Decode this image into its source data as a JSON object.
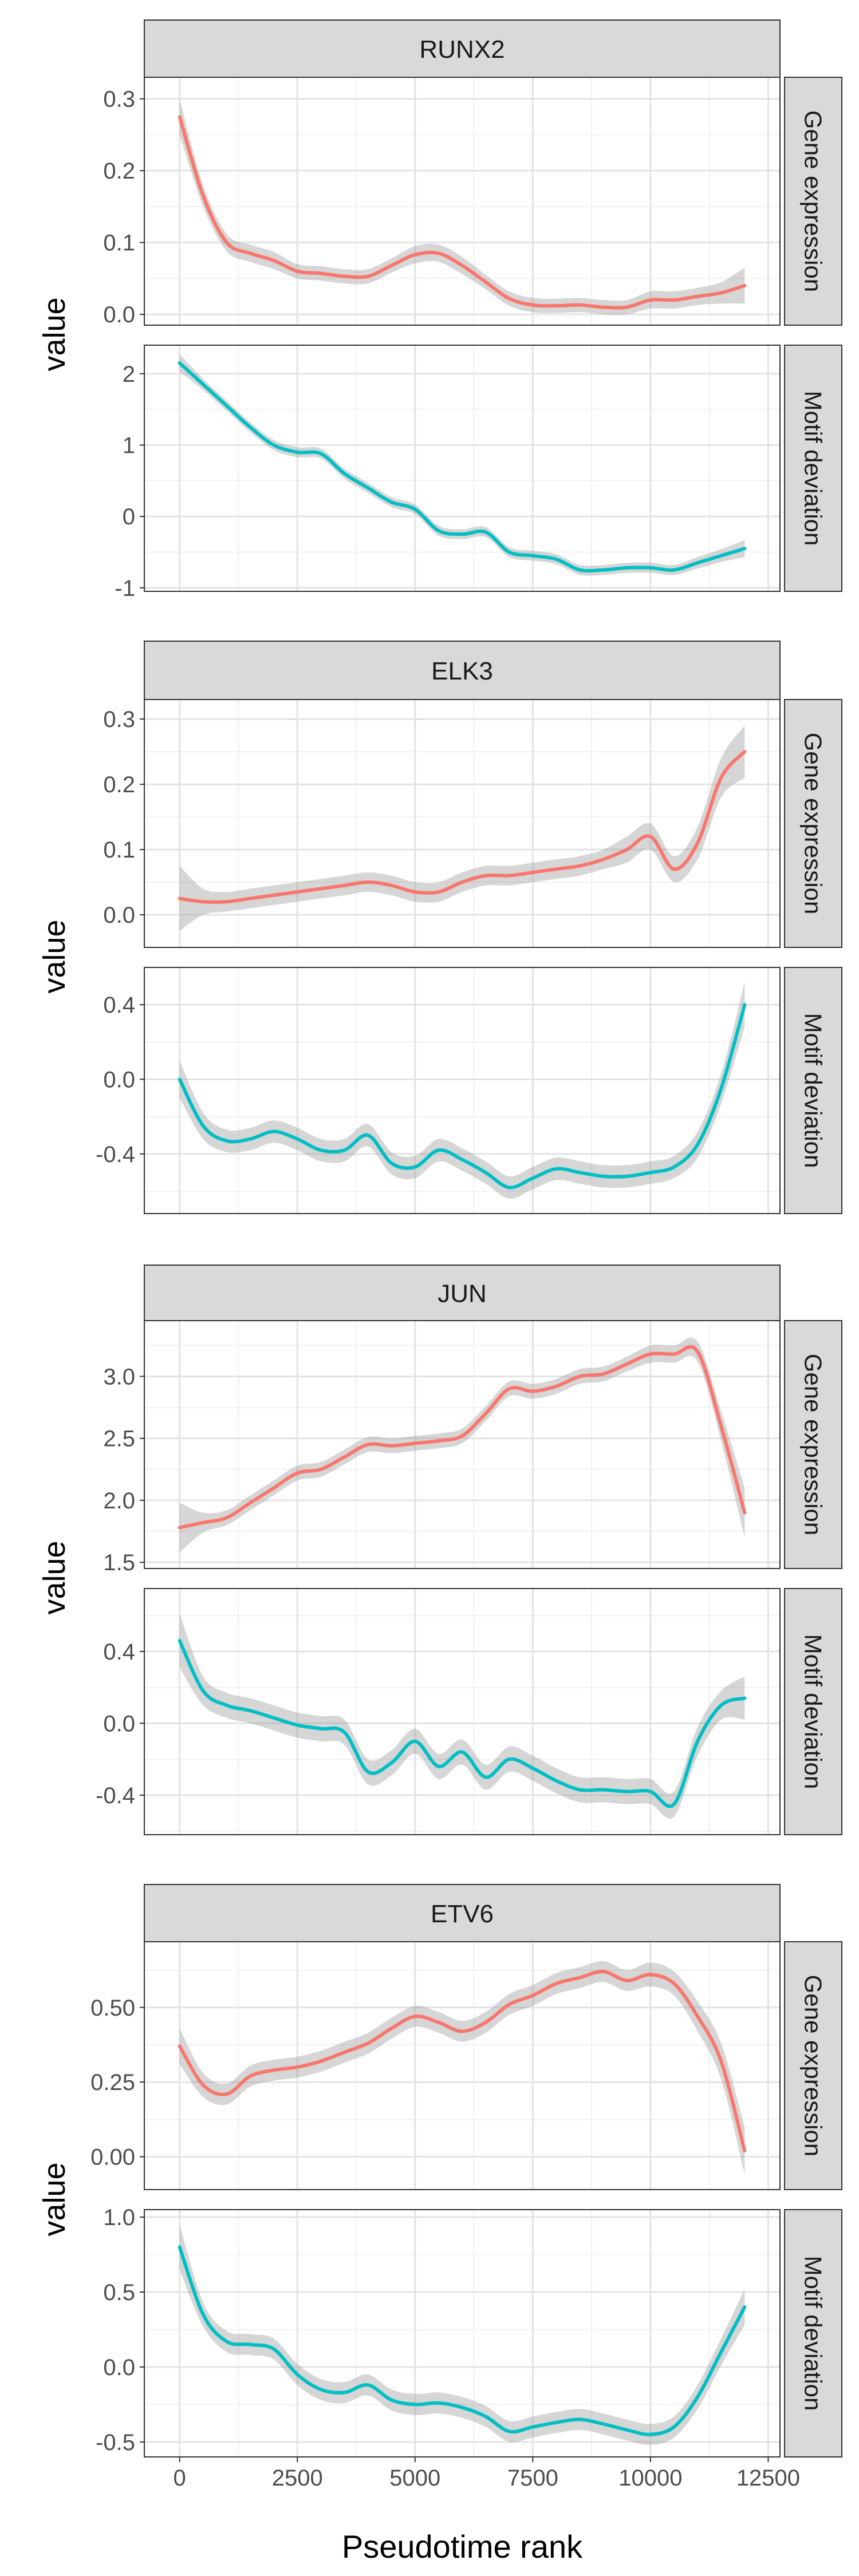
{
  "chart_data": {
    "type": "line",
    "x_axis_label": "Pseudotime rank",
    "x_ticks": [
      0,
      2500,
      5000,
      7500,
      10000,
      12500
    ],
    "x_range": [
      -750,
      12750
    ],
    "y_axis_label": "value",
    "row_strips": [
      "Gene expression",
      "Motif deviation"
    ],
    "series_colors": {
      "Gene expression": "#F8766D",
      "Motif deviation": "#00BFC4"
    },
    "ribbon_color": "#999999",
    "grid": true,
    "legend": "none",
    "genes": [
      {
        "gene": "RUNX2",
        "panels": [
          {
            "strip": "Gene expression",
            "color": "#F8766D",
            "ylim": [
              -0.015,
              0.33
            ],
            "y_ticks": [
              0.0,
              0.1,
              0.2,
              0.3
            ],
            "y_tick_labels": [
              "0.0",
              "0.1",
              "0.2",
              "0.3"
            ],
            "x": [
              0,
              500,
              1000,
              1500,
              2000,
              2500,
              3000,
              3500,
              4000,
              4500,
              5000,
              5500,
              6000,
              6500,
              7000,
              7500,
              8000,
              8500,
              9000,
              9500,
              10000,
              10500,
              11000,
              11500,
              12000
            ],
            "y": [
              0.275,
              0.165,
              0.1,
              0.085,
              0.075,
              0.06,
              0.057,
              0.053,
              0.053,
              0.068,
              0.083,
              0.085,
              0.068,
              0.045,
              0.022,
              0.013,
              0.012,
              0.013,
              0.01,
              0.01,
              0.02,
              0.02,
              0.025,
              0.03,
              0.04
            ],
            "band": [
              0.025,
              0.015,
              0.012,
              0.012,
              0.012,
              0.01,
              0.01,
              0.01,
              0.01,
              0.01,
              0.012,
              0.012,
              0.012,
              0.01,
              0.01,
              0.01,
              0.01,
              0.01,
              0.01,
              0.01,
              0.012,
              0.012,
              0.012,
              0.015,
              0.025
            ]
          },
          {
            "strip": "Motif deviation",
            "color": "#00BFC4",
            "ylim": [
              -1.05,
              2.4
            ],
            "y_ticks": [
              -1,
              0,
              1,
              2
            ],
            "y_tick_labels": [
              "-1",
              "0",
              "1",
              "2"
            ],
            "x": [
              0,
              500,
              1000,
              1500,
              2000,
              2500,
              3000,
              3500,
              4000,
              4500,
              5000,
              5500,
              6000,
              6500,
              7000,
              7500,
              8000,
              8500,
              9000,
              9500,
              10000,
              10500,
              11000,
              11500,
              12000
            ],
            "y": [
              2.15,
              1.85,
              1.55,
              1.25,
              1.0,
              0.9,
              0.88,
              0.6,
              0.4,
              0.2,
              0.1,
              -0.2,
              -0.25,
              -0.22,
              -0.5,
              -0.55,
              -0.6,
              -0.75,
              -0.75,
              -0.72,
              -0.72,
              -0.75,
              -0.65,
              -0.55,
              -0.45
            ],
            "band": [
              0.12,
              0.08,
              0.07,
              0.07,
              0.07,
              0.07,
              0.07,
              0.07,
              0.07,
              0.07,
              0.07,
              0.07,
              0.07,
              0.07,
              0.07,
              0.07,
              0.07,
              0.07,
              0.07,
              0.07,
              0.07,
              0.07,
              0.08,
              0.09,
              0.12
            ]
          }
        ]
      },
      {
        "gene": "ELK3",
        "panels": [
          {
            "strip": "Gene expression",
            "color": "#F8766D",
            "ylim": [
              -0.05,
              0.33
            ],
            "y_ticks": [
              0.0,
              0.1,
              0.2,
              0.3
            ],
            "y_tick_labels": [
              "0.0",
              "0.1",
              "0.2",
              "0.3"
            ],
            "x": [
              0,
              500,
              1000,
              1500,
              2000,
              2500,
              3000,
              3500,
              4000,
              4500,
              5000,
              5500,
              6000,
              6500,
              7000,
              7500,
              8000,
              8500,
              9000,
              9500,
              10000,
              10500,
              11000,
              11500,
              12000
            ],
            "y": [
              0.025,
              0.02,
              0.02,
              0.025,
              0.03,
              0.035,
              0.04,
              0.045,
              0.05,
              0.045,
              0.035,
              0.035,
              0.05,
              0.06,
              0.06,
              0.065,
              0.07,
              0.075,
              0.085,
              0.1,
              0.12,
              0.07,
              0.11,
              0.21,
              0.25
            ],
            "band": [
              0.05,
              0.02,
              0.015,
              0.015,
              0.015,
              0.015,
              0.015,
              0.015,
              0.015,
              0.015,
              0.015,
              0.015,
              0.015,
              0.015,
              0.015,
              0.015,
              0.015,
              0.015,
              0.015,
              0.02,
              0.02,
              0.02,
              0.025,
              0.03,
              0.04
            ]
          },
          {
            "strip": "Motif deviation",
            "color": "#00BFC4",
            "ylim": [
              -0.72,
              0.6
            ],
            "y_ticks": [
              -0.4,
              0.0,
              0.4
            ],
            "y_tick_labels": [
              "-0.4",
              "0.0",
              "0.4"
            ],
            "x": [
              0,
              500,
              1000,
              1500,
              2000,
              2500,
              3000,
              3500,
              4000,
              4500,
              5000,
              5500,
              6000,
              6500,
              7000,
              7500,
              8000,
              8500,
              9000,
              9500,
              10000,
              10500,
              11000,
              11500,
              12000
            ],
            "y": [
              0.0,
              -0.25,
              -0.33,
              -0.32,
              -0.28,
              -0.32,
              -0.38,
              -0.38,
              -0.3,
              -0.45,
              -0.47,
              -0.38,
              -0.43,
              -0.5,
              -0.58,
              -0.53,
              -0.48,
              -0.5,
              -0.52,
              -0.52,
              -0.5,
              -0.47,
              -0.35,
              -0.05,
              0.4
            ],
            "band": [
              0.1,
              0.07,
              0.06,
              0.06,
              0.06,
              0.06,
              0.06,
              0.06,
              0.06,
              0.06,
              0.06,
              0.06,
              0.06,
              0.06,
              0.06,
              0.06,
              0.06,
              0.06,
              0.06,
              0.06,
              0.06,
              0.06,
              0.07,
              0.08,
              0.12
            ]
          }
        ]
      },
      {
        "gene": "JUN",
        "panels": [
          {
            "strip": "Gene expression",
            "color": "#F8766D",
            "ylim": [
              1.45,
              3.45
            ],
            "y_ticks": [
              1.5,
              2.0,
              2.5,
              3.0
            ],
            "y_tick_labels": [
              "1.5",
              "2.0",
              "2.5",
              "3.0"
            ],
            "x": [
              0,
              500,
              1000,
              1500,
              2000,
              2500,
              3000,
              3500,
              4000,
              4500,
              5000,
              5500,
              6000,
              6500,
              7000,
              7500,
              8000,
              8500,
              9000,
              9500,
              10000,
              10500,
              11000,
              11500,
              12000
            ],
            "y": [
              1.78,
              1.82,
              1.86,
              1.98,
              2.1,
              2.22,
              2.25,
              2.35,
              2.45,
              2.44,
              2.46,
              2.48,
              2.52,
              2.7,
              2.9,
              2.88,
              2.92,
              3.0,
              3.02,
              3.1,
              3.18,
              3.18,
              3.2,
              2.6,
              1.9
            ],
            "band": [
              0.2,
              0.08,
              0.06,
              0.06,
              0.06,
              0.06,
              0.06,
              0.06,
              0.06,
              0.06,
              0.06,
              0.06,
              0.06,
              0.06,
              0.06,
              0.06,
              0.06,
              0.06,
              0.06,
              0.06,
              0.07,
              0.07,
              0.08,
              0.12,
              0.2
            ]
          },
          {
            "strip": "Motif deviation",
            "color": "#00BFC4",
            "ylim": [
              -0.62,
              0.75
            ],
            "y_ticks": [
              -0.4,
              0.0,
              0.4
            ],
            "y_tick_labels": [
              "-0.4",
              "0.0",
              "0.4"
            ],
            "x": [
              0,
              500,
              1000,
              1500,
              2000,
              2500,
              3000,
              3500,
              4000,
              4500,
              5000,
              5500,
              6000,
              6500,
              7000,
              7500,
              8000,
              8500,
              9000,
              9500,
              10000,
              10500,
              11000,
              11500,
              12000
            ],
            "y": [
              0.46,
              0.18,
              0.1,
              0.07,
              0.03,
              -0.01,
              -0.03,
              -0.05,
              -0.27,
              -0.22,
              -0.1,
              -0.24,
              -0.16,
              -0.3,
              -0.2,
              -0.25,
              -0.32,
              -0.37,
              -0.37,
              -0.38,
              -0.38,
              -0.45,
              -0.1,
              0.1,
              0.14
            ],
            "band": [
              0.15,
              0.08,
              0.07,
              0.07,
              0.07,
              0.07,
              0.07,
              0.07,
              0.07,
              0.07,
              0.07,
              0.07,
              0.07,
              0.07,
              0.07,
              0.07,
              0.07,
              0.07,
              0.07,
              0.07,
              0.07,
              0.07,
              0.08,
              0.08,
              0.12
            ]
          }
        ]
      },
      {
        "gene": "ETV6",
        "panels": [
          {
            "strip": "Gene expression",
            "color": "#F8766D",
            "ylim": [
              -0.11,
              0.72
            ],
            "y_ticks": [
              0.0,
              0.25,
              0.5
            ],
            "y_tick_labels": [
              "0.00",
              "0.25",
              "0.50"
            ],
            "x": [
              0,
              500,
              1000,
              1500,
              2000,
              2500,
              3000,
              3500,
              4000,
              4500,
              5000,
              5500,
              6000,
              6500,
              7000,
              7500,
              8000,
              8500,
              9000,
              9500,
              10000,
              10500,
              11000,
              11500,
              12000
            ],
            "y": [
              0.37,
              0.24,
              0.21,
              0.27,
              0.29,
              0.3,
              0.32,
              0.35,
              0.38,
              0.43,
              0.47,
              0.45,
              0.42,
              0.45,
              0.51,
              0.54,
              0.58,
              0.6,
              0.62,
              0.59,
              0.61,
              0.58,
              0.47,
              0.32,
              0.02
            ],
            "band": [
              0.06,
              0.04,
              0.035,
              0.035,
              0.035,
              0.035,
              0.035,
              0.035,
              0.035,
              0.035,
              0.035,
              0.035,
              0.035,
              0.035,
              0.035,
              0.035,
              0.035,
              0.035,
              0.035,
              0.035,
              0.04,
              0.04,
              0.05,
              0.06,
              0.08
            ]
          },
          {
            "strip": "Motif deviation",
            "color": "#00BFC4",
            "ylim": [
              -0.6,
              1.05
            ],
            "y_ticks": [
              -0.5,
              0.0,
              0.5,
              1.0
            ],
            "y_tick_labels": [
              "-0.5",
              "0.0",
              "0.5",
              "1.0"
            ],
            "x": [
              0,
              500,
              1000,
              1500,
              2000,
              2500,
              3000,
              3500,
              4000,
              4500,
              5000,
              5500,
              6000,
              6500,
              7000,
              7500,
              8000,
              8500,
              9000,
              9500,
              10000,
              10500,
              11000,
              11500,
              12000
            ],
            "y": [
              0.8,
              0.35,
              0.17,
              0.15,
              0.12,
              -0.05,
              -0.15,
              -0.17,
              -0.12,
              -0.22,
              -0.25,
              -0.24,
              -0.27,
              -0.33,
              -0.43,
              -0.4,
              -0.37,
              -0.35,
              -0.38,
              -0.42,
              -0.45,
              -0.4,
              -0.2,
              0.1,
              0.4
            ],
            "band": [
              0.15,
              0.08,
              0.07,
              0.07,
              0.07,
              0.07,
              0.07,
              0.07,
              0.07,
              0.07,
              0.07,
              0.07,
              0.07,
              0.07,
              0.07,
              0.07,
              0.07,
              0.07,
              0.07,
              0.07,
              0.07,
              0.07,
              0.08,
              0.09,
              0.12
            ]
          }
        ]
      }
    ]
  }
}
